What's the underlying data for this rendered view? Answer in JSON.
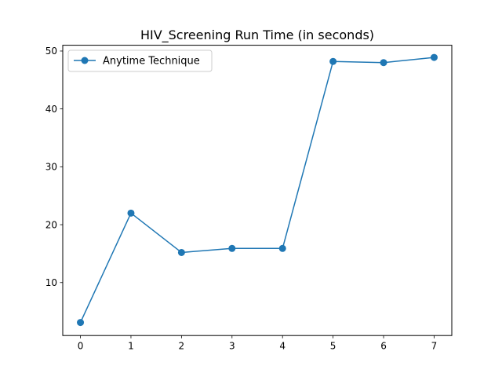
{
  "chart_data": {
    "type": "line",
    "title": "HIV_Screening Run Time (in seconds)",
    "xlabel": "",
    "ylabel": "",
    "x": [
      0,
      1,
      2,
      3,
      4,
      5,
      6,
      7
    ],
    "xticks": [
      0,
      1,
      2,
      3,
      4,
      5,
      6,
      7
    ],
    "yticks": [
      10,
      20,
      30,
      40,
      50
    ],
    "xlim": [
      -0.35,
      7.35
    ],
    "ylim": [
      0.85,
      51.0
    ],
    "grid": false,
    "legend_position": "top-left",
    "series": [
      {
        "name": "Anytime Technique",
        "values": [
          3.1,
          22.0,
          15.2,
          15.9,
          15.9,
          48.2,
          48.0,
          48.9
        ],
        "color": "#1f77b4",
        "marker": "circle"
      }
    ]
  }
}
